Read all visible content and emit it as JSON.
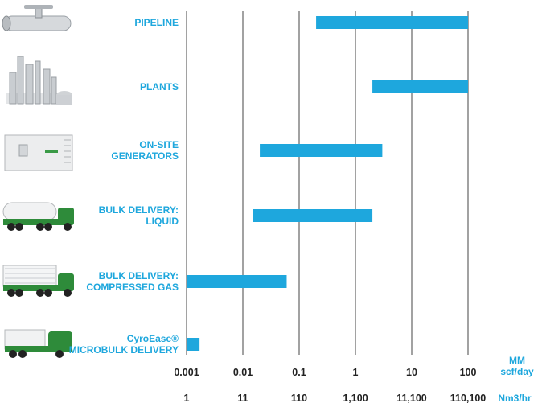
{
  "chart_data": {
    "type": "bar",
    "orientation": "horizontal",
    "bar_kind": "range",
    "x_scale": "log",
    "xlim": [
      0.001,
      100
    ],
    "grid": true,
    "categories": [
      {
        "lines": [
          "PIPELINE"
        ],
        "icon": "pipeline-valve-icon"
      },
      {
        "lines": [
          "PLANTS"
        ],
        "icon": "industrial-plant-icon"
      },
      {
        "lines": [
          "ON-SITE",
          "GENERATORS"
        ],
        "icon": "generator-container-icon"
      },
      {
        "lines": [
          "BULK DELIVERY:",
          "LIQUID"
        ],
        "icon": "tanker-truck-icon"
      },
      {
        "lines": [
          "BULK DELIVERY:",
          "COMPRESSED GAS"
        ],
        "icon": "tube-trailer-truck-icon"
      },
      {
        "lines": [
          "CyroEase®",
          "MICROBULK DELIVERY"
        ],
        "icon": "microbulk-truck-icon"
      }
    ],
    "ranges": [
      [
        0.2,
        100
      ],
      [
        2,
        100
      ],
      [
        0.02,
        3
      ],
      [
        0.015,
        2
      ],
      [
        0.001,
        0.06
      ],
      [
        0.001,
        0.0017
      ]
    ],
    "x_ticks_primary": [
      "0.001",
      "0.01",
      "0.1",
      "1",
      "10",
      "100"
    ],
    "x_ticks_secondary": [
      "1",
      "11",
      "110",
      "1,100",
      "11,100",
      "110,100"
    ],
    "x_unit_primary": [
      "MM",
      "scf/day"
    ],
    "x_unit_secondary": "Nm3/hr",
    "colors": {
      "bar": "#1ea7dd",
      "label": "#1ea7dd",
      "grid": "#444444",
      "text": "#222222",
      "truck_green": "#2e8b3a"
    }
  }
}
